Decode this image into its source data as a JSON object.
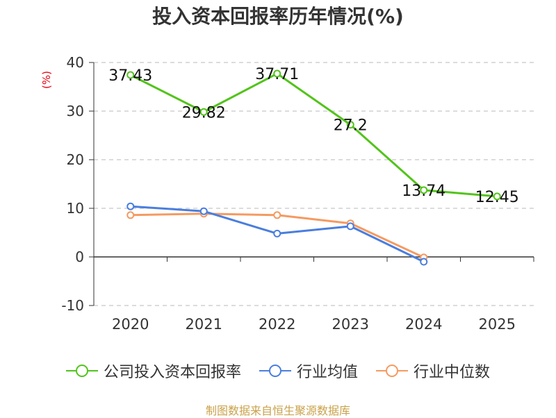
{
  "title": "投入资本回报率历年情况(%)",
  "source": "制图数据来自恒生聚源数据库",
  "chart_data": {
    "type": "line",
    "ylabel": "(%)",
    "xlabel": "",
    "categories": [
      "2020",
      "2021",
      "2022",
      "2023",
      "2024",
      "2025"
    ],
    "ylim": [
      -10,
      40
    ],
    "yticks": [
      40,
      30,
      20,
      10,
      0,
      -10
    ],
    "grid": true,
    "legend_position": "bottom",
    "series": [
      {
        "name": "公司投入资本回报率",
        "color": "#52c41a",
        "values": [
          37.43,
          29.82,
          37.71,
          27.2,
          13.74,
          12.45
        ],
        "labels": [
          "37.43",
          "29.82",
          "37.71",
          "27.2",
          "13.74",
          "12.45"
        ]
      },
      {
        "name": "行业均值",
        "color": "#4a7ede",
        "values": [
          10.4,
          9.4,
          4.8,
          6.3,
          -1.0,
          null
        ]
      },
      {
        "name": "行业中位数",
        "color": "#f59a61",
        "values": [
          8.6,
          8.9,
          8.6,
          6.9,
          -0.1,
          null
        ]
      }
    ]
  }
}
